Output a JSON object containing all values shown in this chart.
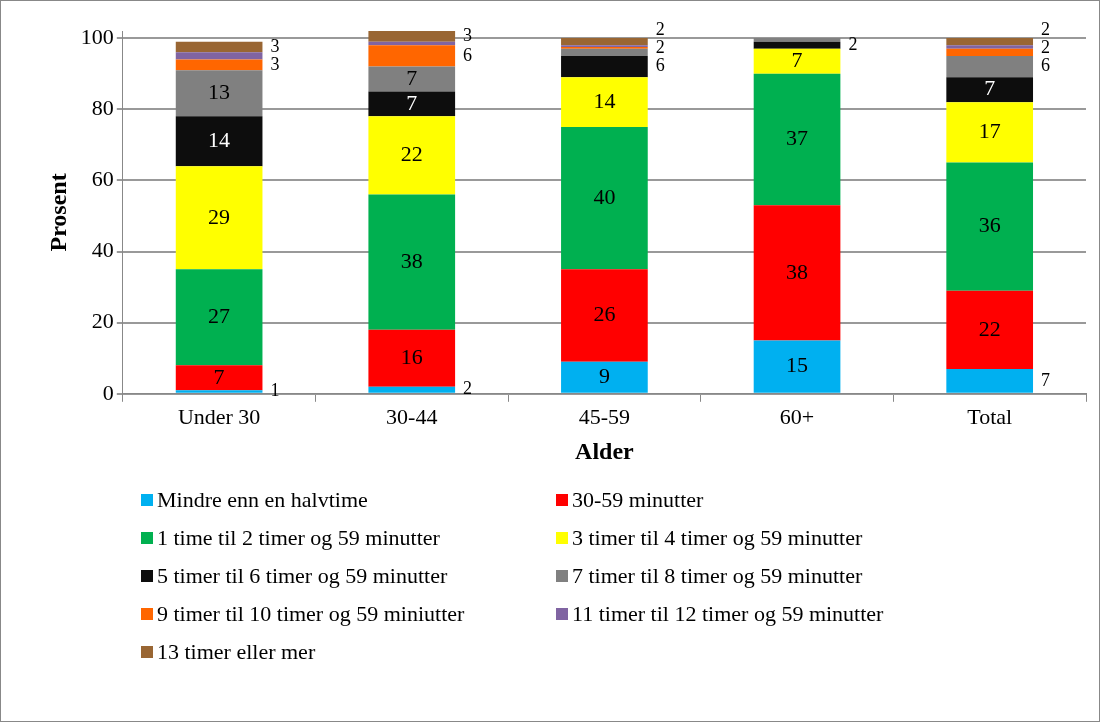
{
  "chart_data": {
    "type": "bar",
    "stacked": true,
    "xlabel": "Alder",
    "ylabel": "Prosent",
    "categories": [
      "Under 30",
      "30-44",
      "45-59",
      "60+",
      "Total"
    ],
    "ylim": [
      0,
      102
    ],
    "yticks": [
      0,
      20,
      40,
      60,
      80,
      100
    ],
    "grid": "y",
    "legend": "bottom",
    "series": [
      {
        "name": "Mindre enn en halvtime",
        "color": "#00b0f0",
        "values": [
          1,
          2,
          9,
          15,
          7
        ],
        "value_labels": [
          "1",
          "2",
          "9",
          "15",
          "7"
        ]
      },
      {
        "name": "30-59 minutter",
        "color": "#ff0000",
        "values": [
          7,
          16,
          26,
          38,
          22
        ],
        "value_labels": [
          "7",
          "16",
          "26",
          "38",
          "22"
        ]
      },
      {
        "name": "1 time til 2 timer og 59 minutter",
        "color": "#00b050",
        "values": [
          27,
          38,
          40,
          37,
          36
        ],
        "value_labels": [
          "27",
          "38",
          "40",
          "37",
          "36"
        ]
      },
      {
        "name": "3 timer til 4 timer og 59 minutter",
        "color": "#ffff00",
        "values": [
          29,
          22,
          14,
          7,
          17
        ],
        "value_labels": [
          "29",
          "22",
          "14",
          "7",
          "17"
        ]
      },
      {
        "name": "5 timer til 6 timer og 59 minutter",
        "color": "#0d0d0d",
        "values": [
          14,
          7,
          6,
          2,
          7
        ],
        "value_labels": [
          "14",
          "7",
          "6",
          "2",
          "7"
        ]
      },
      {
        "name": "7 timer til 8 timer og 59 minutter",
        "color": "#808080",
        "values": [
          13,
          7,
          2,
          1,
          6
        ],
        "value_labels": [
          "13",
          "7",
          "2",
          null,
          "6"
        ]
      },
      {
        "name": "9 timer til 10 timer og 59 miniutter",
        "color": "#ff6600",
        "values": [
          3,
          6,
          0.5,
          null,
          2
        ],
        "value_labels": [
          "3",
          "6",
          null,
          null,
          "2"
        ]
      },
      {
        "name": "11 timer til 12 timer og 59 minutter",
        "color": "#8064a2",
        "values": [
          2,
          1,
          0.5,
          null,
          1
        ],
        "value_labels": [
          null,
          null,
          null,
          null,
          null
        ]
      },
      {
        "name": "13 timer eller mer",
        "color": "#996633",
        "values": [
          3,
          3,
          2,
          null,
          2
        ],
        "value_labels": [
          "3",
          "3",
          "2",
          null,
          "2"
        ]
      }
    ]
  }
}
